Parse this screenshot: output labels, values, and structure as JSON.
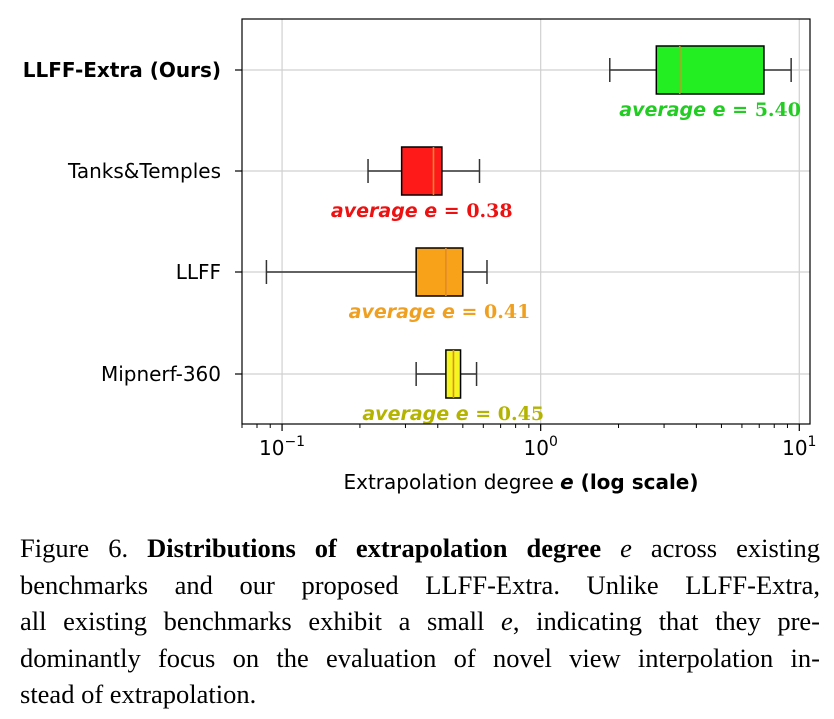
{
  "chart_data": {
    "type": "boxplot",
    "orientation": "horizontal",
    "xscale": "log",
    "xlim": [
      0.07,
      11
    ],
    "xlabel_text": "Extrapolation degree ",
    "xlabel_var": "e",
    "xlabel_suffix": " (log scale)",
    "xticks": [
      {
        "value": 0.1,
        "base": "10",
        "exp": "−1"
      },
      {
        "value": 1,
        "base": "10",
        "exp": "0"
      },
      {
        "value": 10,
        "base": "10",
        "exp": "1"
      }
    ],
    "grid": true,
    "series": [
      {
        "name": "LLFF-Extra (Ours)",
        "bold": true,
        "whisker_low": 1.85,
        "q1": 2.8,
        "median": 3.45,
        "q3": 7.3,
        "whisker_high": 9.3,
        "color": "#22ee22",
        "label_color": "#22cc22",
        "avg_prefix": "average ",
        "avg_var": "e",
        "avg_eq": " = ",
        "avg_value": "5.40"
      },
      {
        "name": "Tanks&Temples",
        "bold": false,
        "whisker_low": 0.215,
        "q1": 0.29,
        "median": 0.385,
        "q3": 0.415,
        "whisker_high": 0.58,
        "color": "#ff1a1a",
        "label_color": "#ee1111",
        "avg_prefix": "average ",
        "avg_var": "e",
        "avg_eq": " = ",
        "avg_value": "0.38"
      },
      {
        "name": "LLFF",
        "bold": false,
        "whisker_low": 0.087,
        "q1": 0.33,
        "median": 0.43,
        "q3": 0.5,
        "whisker_high": 0.62,
        "color": "#f8a21a",
        "label_color": "#f0a020",
        "avg_prefix": "average ",
        "avg_var": "e",
        "avg_eq": " = ",
        "avg_value": "0.41"
      },
      {
        "name": "Mipnerf-360",
        "bold": false,
        "whisker_low": 0.33,
        "q1": 0.43,
        "median": 0.46,
        "q3": 0.49,
        "whisker_high": 0.565,
        "color": "#f5f51f",
        "label_color": "#b3b300",
        "avg_prefix": "average ",
        "avg_var": "e",
        "avg_eq": " = ",
        "avg_value": "0.45"
      }
    ]
  },
  "caption": {
    "prefix": "Figure 6. ",
    "bold_title": "Distributions of extrapolation degree",
    "title_var": "e",
    "line1_rest": " across existing",
    "body_1": "benchmarks and our proposed LLFF-Extra.  Unlike LLFF-Extra,",
    "body_2a": "all existing benchmarks exhibit a small ",
    "body_2var": "e",
    "body_2b": ", indicating that they pre-",
    "body_3": "dominantly focus on the evaluation of novel view interpolation in-",
    "body_4": "stead of extrapolation."
  }
}
